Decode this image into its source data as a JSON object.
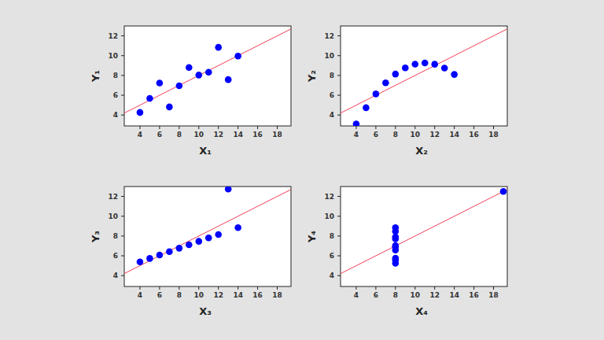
{
  "chart_data": [
    {
      "type": "scatter",
      "x_label": "X₁",
      "y_label": "Y₁",
      "xlim": [
        2.4,
        19.4
      ],
      "ylim": [
        2.9,
        13
      ],
      "xticks": [
        4,
        6,
        8,
        10,
        12,
        14,
        16,
        18
      ],
      "yticks": [
        4,
        6,
        8,
        10,
        12
      ],
      "series": [
        {
          "type": "scatter",
          "color": "#0000ff",
          "marker": "circle",
          "x": [
            10,
            8,
            13,
            9,
            11,
            14,
            6,
            4,
            12,
            7,
            5
          ],
          "values": [
            8.04,
            6.95,
            7.58,
            8.81,
            8.33,
            9.96,
            7.24,
            4.26,
            10.84,
            4.82,
            5.68
          ]
        },
        {
          "type": "line",
          "color": "#f0405a",
          "line_style": "solid",
          "x": [
            2.4,
            19.4
          ],
          "values": [
            4.2,
            12.7
          ]
        }
      ]
    },
    {
      "type": "scatter",
      "x_label": "X₂",
      "y_label": "Y₂",
      "xlim": [
        2.4,
        19.4
      ],
      "ylim": [
        2.9,
        13
      ],
      "xticks": [
        4,
        6,
        8,
        10,
        12,
        14,
        16,
        18
      ],
      "yticks": [
        4,
        6,
        8,
        10,
        12
      ],
      "series": [
        {
          "type": "scatter",
          "color": "#0000ff",
          "marker": "circle",
          "x": [
            10,
            8,
            13,
            9,
            11,
            14,
            6,
            4,
            12,
            7,
            5
          ],
          "values": [
            9.14,
            8.14,
            8.74,
            8.77,
            9.26,
            8.1,
            6.13,
            3.1,
            9.13,
            7.26,
            4.74
          ]
        },
        {
          "type": "line",
          "color": "#f0405a",
          "line_style": "solid",
          "x": [
            2.4,
            19.4
          ],
          "values": [
            4.2,
            12.7
          ]
        }
      ]
    },
    {
      "type": "scatter",
      "x_label": "X₃",
      "y_label": "Y₃",
      "xlim": [
        2.4,
        19.4
      ],
      "ylim": [
        2.9,
        13
      ],
      "xticks": [
        4,
        6,
        8,
        10,
        12,
        14,
        16,
        18
      ],
      "yticks": [
        4,
        6,
        8,
        10,
        12
      ],
      "series": [
        {
          "type": "scatter",
          "color": "#0000ff",
          "marker": "circle",
          "x": [
            10,
            8,
            13,
            9,
            11,
            14,
            6,
            4,
            12,
            7,
            5
          ],
          "values": [
            7.46,
            6.77,
            12.74,
            7.11,
            7.81,
            8.84,
            6.08,
            5.39,
            8.15,
            6.42,
            5.73
          ]
        },
        {
          "type": "line",
          "color": "#f0405a",
          "line_style": "solid",
          "x": [
            2.4,
            19.4
          ],
          "values": [
            4.2,
            12.7
          ]
        }
      ]
    },
    {
      "type": "scatter",
      "x_label": "X₄",
      "y_label": "Y₄",
      "xlim": [
        2.4,
        19.4
      ],
      "ylim": [
        2.9,
        13
      ],
      "xticks": [
        4,
        6,
        8,
        10,
        12,
        14,
        16,
        18
      ],
      "yticks": [
        4,
        6,
        8,
        10,
        12
      ],
      "series": [
        {
          "type": "scatter",
          "color": "#0000ff",
          "marker": "circle",
          "x": [
            8,
            8,
            8,
            8,
            8,
            8,
            8,
            19,
            8,
            8,
            8
          ],
          "values": [
            6.58,
            5.76,
            7.71,
            8.84,
            8.47,
            7.04,
            5.25,
            12.5,
            5.56,
            7.91,
            6.89
          ]
        },
        {
          "type": "line",
          "color": "#f0405a",
          "line_style": "solid",
          "x": [
            2.4,
            19.4
          ],
          "values": [
            4.2,
            12.7
          ]
        }
      ]
    }
  ]
}
